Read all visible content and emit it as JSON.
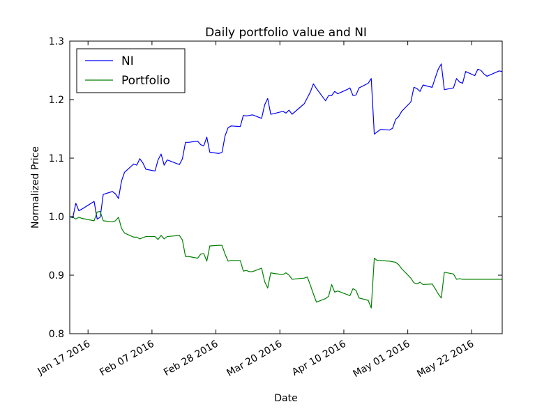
{
  "chart_data": {
    "type": "line",
    "title": "Daily portfolio value and NI",
    "xlabel": "Date",
    "ylabel": "Normalized Price",
    "xlim": [
      "2016-01-11",
      "2016-06-01"
    ],
    "ylim": [
      0.8,
      1.3
    ],
    "grid": false,
    "legend_position": "top-left",
    "x_ticks": [
      "2016-01-17",
      "2016-02-07",
      "2016-02-28",
      "2016-03-20",
      "2016-04-10",
      "2016-05-01",
      "2016-05-22"
    ],
    "x_tick_labels": [
      "Jan 17 2016",
      "Feb 07 2016",
      "Feb 28 2016",
      "Mar 20 2016",
      "Apr 10 2016",
      "May 01 2016",
      "May 22 2016"
    ],
    "y_ticks": [
      0.8,
      0.9,
      1.0,
      1.1,
      1.2,
      1.3
    ],
    "y_tick_labels": [
      "0.8",
      "0.9",
      "1.0",
      "1.1",
      "1.2",
      "1.3"
    ],
    "x": [
      "2016-01-11",
      "2016-01-12",
      "2016-01-13",
      "2016-01-14",
      "2016-01-15",
      "2016-01-19",
      "2016-01-20",
      "2016-01-21",
      "2016-01-22",
      "2016-01-25",
      "2016-01-26",
      "2016-01-27",
      "2016-01-28",
      "2016-01-29",
      "2016-02-01",
      "2016-02-02",
      "2016-02-03",
      "2016-02-04",
      "2016-02-05",
      "2016-02-08",
      "2016-02-09",
      "2016-02-10",
      "2016-02-11",
      "2016-02-12",
      "2016-02-16",
      "2016-02-17",
      "2016-02-18",
      "2016-02-19",
      "2016-02-22",
      "2016-02-23",
      "2016-02-24",
      "2016-02-25",
      "2016-02-26",
      "2016-02-29",
      "2016-03-01",
      "2016-03-02",
      "2016-03-03",
      "2016-03-04",
      "2016-03-07",
      "2016-03-08",
      "2016-03-09",
      "2016-03-10",
      "2016-03-11",
      "2016-03-14",
      "2016-03-15",
      "2016-03-16",
      "2016-03-17",
      "2016-03-18",
      "2016-03-21",
      "2016-03-22",
      "2016-03-23",
      "2016-03-24",
      "2016-03-28",
      "2016-03-29",
      "2016-03-30",
      "2016-03-31",
      "2016-04-01",
      "2016-04-04",
      "2016-04-05",
      "2016-04-06",
      "2016-04-07",
      "2016-04-08",
      "2016-04-11",
      "2016-04-12",
      "2016-04-13",
      "2016-04-14",
      "2016-04-15",
      "2016-04-18",
      "2016-04-19",
      "2016-04-20",
      "2016-04-21",
      "2016-04-22",
      "2016-04-25",
      "2016-04-26",
      "2016-04-27",
      "2016-04-28",
      "2016-04-29",
      "2016-05-02",
      "2016-05-03",
      "2016-05-04",
      "2016-05-05",
      "2016-05-06",
      "2016-05-09",
      "2016-05-10",
      "2016-05-11",
      "2016-05-12",
      "2016-05-13",
      "2016-05-16",
      "2016-05-17",
      "2016-05-18",
      "2016-05-19",
      "2016-05-20",
      "2016-05-23",
      "2016-05-24",
      "2016-05-25",
      "2016-05-26",
      "2016-05-27",
      "2016-05-31",
      "2016-06-01"
    ],
    "series": [
      {
        "name": "NI",
        "color": "#0000ff",
        "values": [
          1.0,
          0.998,
          1.023,
          1.01,
          1.013,
          1.026,
          0.996,
          0.999,
          1.038,
          1.043,
          1.039,
          1.031,
          1.061,
          1.076,
          1.09,
          1.088,
          1.099,
          1.092,
          1.081,
          1.078,
          1.097,
          1.107,
          1.088,
          1.097,
          1.089,
          1.099,
          1.127,
          1.127,
          1.129,
          1.123,
          1.121,
          1.136,
          1.11,
          1.108,
          1.11,
          1.138,
          1.152,
          1.155,
          1.154,
          1.173,
          1.172,
          1.173,
          1.174,
          1.168,
          1.191,
          1.202,
          1.175,
          1.176,
          1.18,
          1.177,
          1.182,
          1.175,
          1.193,
          1.203,
          1.213,
          1.227,
          1.219,
          1.198,
          1.207,
          1.207,
          1.214,
          1.21,
          1.217,
          1.22,
          1.207,
          1.208,
          1.22,
          1.228,
          1.236,
          1.141,
          1.145,
          1.149,
          1.148,
          1.151,
          1.166,
          1.171,
          1.18,
          1.196,
          1.221,
          1.219,
          1.214,
          1.225,
          1.221,
          1.237,
          1.252,
          1.261,
          1.217,
          1.22,
          1.236,
          1.23,
          1.228,
          1.248,
          1.241,
          1.252,
          1.25,
          1.244,
          1.24,
          1.249,
          1.248
        ]
      },
      {
        "name": "Portfolio",
        "color": "#008000",
        "values": [
          1.0,
          0.999,
          0.996,
          0.999,
          0.997,
          0.993,
          1.008,
          1.009,
          0.993,
          0.991,
          0.993,
          0.999,
          0.98,
          0.972,
          0.965,
          0.965,
          0.962,
          0.964,
          0.966,
          0.966,
          0.961,
          0.968,
          0.962,
          0.966,
          0.968,
          0.96,
          0.932,
          0.932,
          0.929,
          0.936,
          0.937,
          0.924,
          0.95,
          0.951,
          0.951,
          0.936,
          0.924,
          0.925,
          0.925,
          0.907,
          0.908,
          0.906,
          0.906,
          0.912,
          0.889,
          0.878,
          0.904,
          0.903,
          0.901,
          0.904,
          0.9,
          0.893,
          0.895,
          0.897,
          0.883,
          0.868,
          0.854,
          0.86,
          0.864,
          0.884,
          0.871,
          0.873,
          0.867,
          0.865,
          0.877,
          0.874,
          0.861,
          0.857,
          0.844,
          0.929,
          0.925,
          0.925,
          0.924,
          0.923,
          0.922,
          0.918,
          0.911,
          0.895,
          0.887,
          0.885,
          0.888,
          0.884,
          0.885,
          0.877,
          0.868,
          0.861,
          0.905,
          0.902,
          0.893,
          0.894,
          0.893,
          0.893,
          0.893,
          0.893,
          0.893,
          0.893,
          0.893,
          0.893,
          0.893
        ]
      }
    ]
  }
}
